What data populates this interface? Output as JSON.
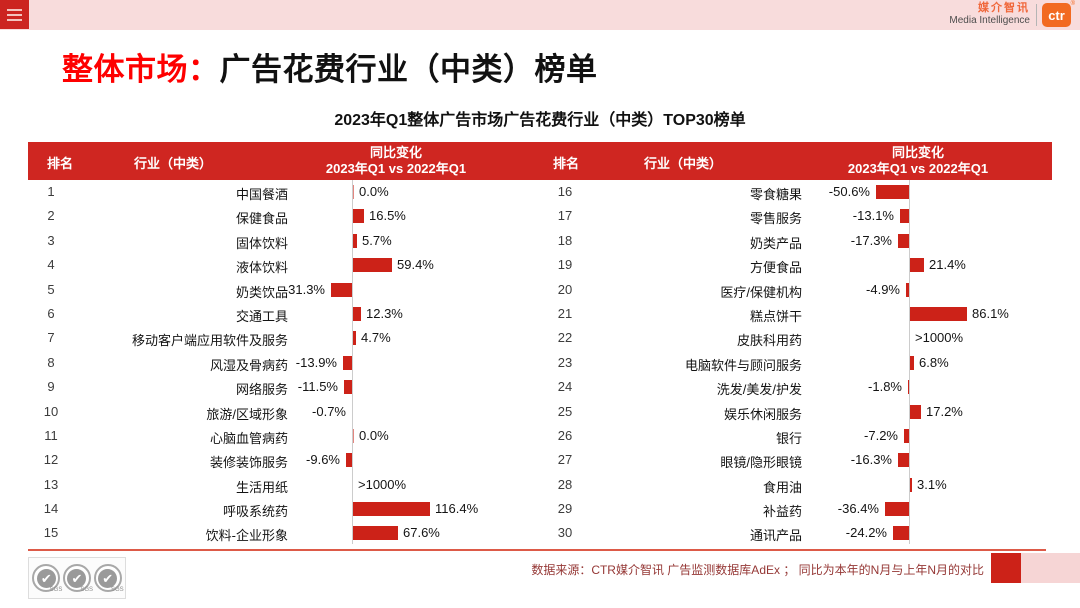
{
  "topbar": {
    "brand_cn": "媒介智讯",
    "brand_en": "Media Intelligence",
    "logo_text": "ctr",
    "logo_reg": "®"
  },
  "title": {
    "highlight": "整体市场：",
    "rest": "广告花费行业（中类）榜单"
  },
  "subtitle": "2023年Q1整体广告市场广告花费行业（中类）TOP30榜单",
  "table_headers": {
    "rank": "排名",
    "industry": "行业（中类）",
    "change_line1": "同比变化",
    "change_line2": "2023年Q1 vs 2022年Q1"
  },
  "footer": {
    "source_note": "数据来源：CTR媒介智讯 广告监测数据库AdEx ；  同比为本年的N月与上年N月的对比",
    "sgs_label": "SGS",
    "check_glyph": "✔"
  },
  "colors": {
    "header_red": "#cf2621",
    "bar_red": "#cc2218",
    "topbar_pink": "#f8dcdc",
    "title_red": "#fe0000",
    "logo_orange": "#f26a21",
    "footer_maroon": "#953735",
    "axis_gray": "#cccccc"
  },
  "chart_data": {
    "type": "bar",
    "title": "2023年Q1整体广告市场广告花费行业（中类）TOP30榜单",
    "series_name": "同比变化 2023年Q1 vs 2022年Q1",
    "unit": "%",
    "orientation": "horizontal",
    "note": "值为 null 表示增幅超过1000%，原图未绘制条形，仅显示文本 >1000%",
    "tables": [
      {
        "rows": [
          {
            "rank": 1,
            "industry": "中国餐酒",
            "label": "0.0%",
            "value": 0.0
          },
          {
            "rank": 2,
            "industry": "保健食品",
            "label": "16.5%",
            "value": 16.5
          },
          {
            "rank": 3,
            "industry": "固体饮料",
            "label": "5.7%",
            "value": 5.7
          },
          {
            "rank": 4,
            "industry": "液体饮料",
            "label": "59.4%",
            "value": 59.4
          },
          {
            "rank": 5,
            "industry": "奶类饮品",
            "label": "-31.3%",
            "value": -31.3
          },
          {
            "rank": 6,
            "industry": "交通工具",
            "label": "12.3%",
            "value": 12.3
          },
          {
            "rank": 7,
            "industry": "移动客户端应用软件及服务",
            "label": "4.7%",
            "value": 4.7
          },
          {
            "rank": 8,
            "industry": "风湿及骨病药",
            "label": "-13.9%",
            "value": -13.9
          },
          {
            "rank": 9,
            "industry": "网络服务",
            "label": "-11.5%",
            "value": -11.5
          },
          {
            "rank": 10,
            "industry": "旅游/区域形象",
            "label": "-0.7%",
            "value": -0.7
          },
          {
            "rank": 11,
            "industry": "心脑血管病药",
            "label": "0.0%",
            "value": 0.0
          },
          {
            "rank": 12,
            "industry": "装修装饰服务",
            "label": "-9.6%",
            "value": -9.6
          },
          {
            "rank": 13,
            "industry": "生活用纸",
            "label": ">1000%",
            "value": null
          },
          {
            "rank": 14,
            "industry": "呼吸系统药",
            "label": "116.4%",
            "value": 116.4
          },
          {
            "rank": 15,
            "industry": "饮料-企业形象",
            "label": "67.6%",
            "value": 67.6
          }
        ]
      },
      {
        "rows": [
          {
            "rank": 16,
            "industry": "零食糖果",
            "label": "-50.6%",
            "value": -50.6
          },
          {
            "rank": 17,
            "industry": "零售服务",
            "label": "-13.1%",
            "value": -13.1
          },
          {
            "rank": 18,
            "industry": "奶类产品",
            "label": "-17.3%",
            "value": -17.3
          },
          {
            "rank": 19,
            "industry": "方便食品",
            "label": "21.4%",
            "value": 21.4
          },
          {
            "rank": 20,
            "industry": "医疗/保健机构",
            "label": "-4.9%",
            "value": -4.9
          },
          {
            "rank": 21,
            "industry": "糕点饼干",
            "label": "86.1%",
            "value": 86.1
          },
          {
            "rank": 22,
            "industry": "皮肤科用药",
            "label": ">1000%",
            "value": null
          },
          {
            "rank": 23,
            "industry": "电脑软件与顾问服务",
            "label": "6.8%",
            "value": 6.8
          },
          {
            "rank": 24,
            "industry": "洗发/美发/护发",
            "label": "-1.8%",
            "value": -1.8
          },
          {
            "rank": 25,
            "industry": "娱乐休闲服务",
            "label": "17.2%",
            "value": 17.2
          },
          {
            "rank": 26,
            "industry": "银行",
            "label": "-7.2%",
            "value": -7.2
          },
          {
            "rank": 27,
            "industry": "眼镜/隐形眼镜",
            "label": "-16.3%",
            "value": -16.3
          },
          {
            "rank": 28,
            "industry": "食用油",
            "label": "3.1%",
            "value": 3.1
          },
          {
            "rank": 29,
            "industry": "补益药",
            "label": "-36.4%",
            "value": -36.4
          },
          {
            "rank": 30,
            "industry": "通讯产品",
            "label": "-24.2%",
            "value": -24.2
          }
        ]
      }
    ]
  }
}
